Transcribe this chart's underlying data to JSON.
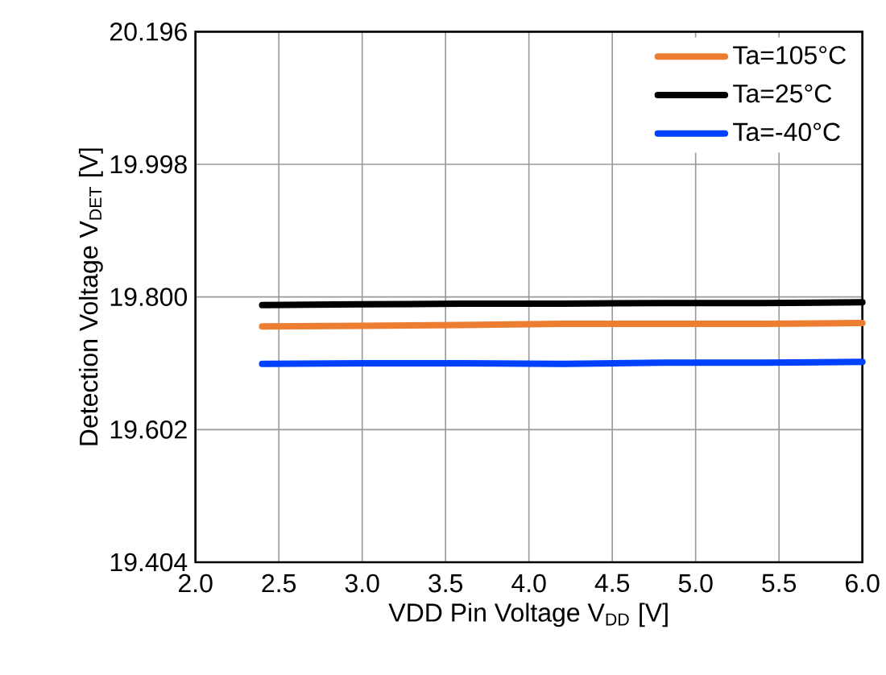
{
  "chart_data": {
    "type": "line",
    "xlabel": "VDD Pin Voltage V$_{DD}$ [V]",
    "ylabel": "Detection Voltage V$_{DET}$ [V]",
    "x": [
      2.4,
      3.0,
      3.6,
      4.2,
      4.8,
      5.4,
      6.0
    ],
    "series": [
      {
        "name": "Ta=105°C",
        "color": "#ed7d31",
        "values": [
          19.756,
          19.757,
          19.758,
          19.76,
          19.76,
          19.76,
          19.761
        ]
      },
      {
        "name": "Ta=25°C",
        "color": "#000000",
        "values": [
          19.788,
          19.789,
          19.79,
          19.79,
          19.791,
          19.791,
          19.792
        ]
      },
      {
        "name": "Ta=-40°C",
        "color": "#0041ff",
        "values": [
          19.7,
          19.701,
          19.701,
          19.7,
          19.702,
          19.702,
          19.703
        ]
      }
    ],
    "xlim": [
      2.0,
      6.0
    ],
    "ylim": [
      19.404,
      20.196
    ],
    "xticks": [
      {
        "value": 2.0,
        "label": "2.0"
      },
      {
        "value": 2.5,
        "label": "2.5"
      },
      {
        "value": 3.0,
        "label": "3.0"
      },
      {
        "value": 3.5,
        "label": "3.5"
      },
      {
        "value": 4.0,
        "label": "4.0"
      },
      {
        "value": 4.5,
        "label": "4.5"
      },
      {
        "value": 5.0,
        "label": "5.0"
      },
      {
        "value": 5.5,
        "label": "5.5"
      },
      {
        "value": 6.0,
        "label": "6.0"
      }
    ],
    "yticks": [
      {
        "value": 19.404,
        "label": "19.404"
      },
      {
        "value": 19.602,
        "label": "19.602"
      },
      {
        "value": 19.8,
        "label": "19.800"
      },
      {
        "value": 19.998,
        "label": "19.998"
      },
      {
        "value": 20.196,
        "label": "20.196"
      }
    ],
    "grid": true,
    "legend": "top right",
    "marker": "none",
    "line_style": "solid"
  }
}
